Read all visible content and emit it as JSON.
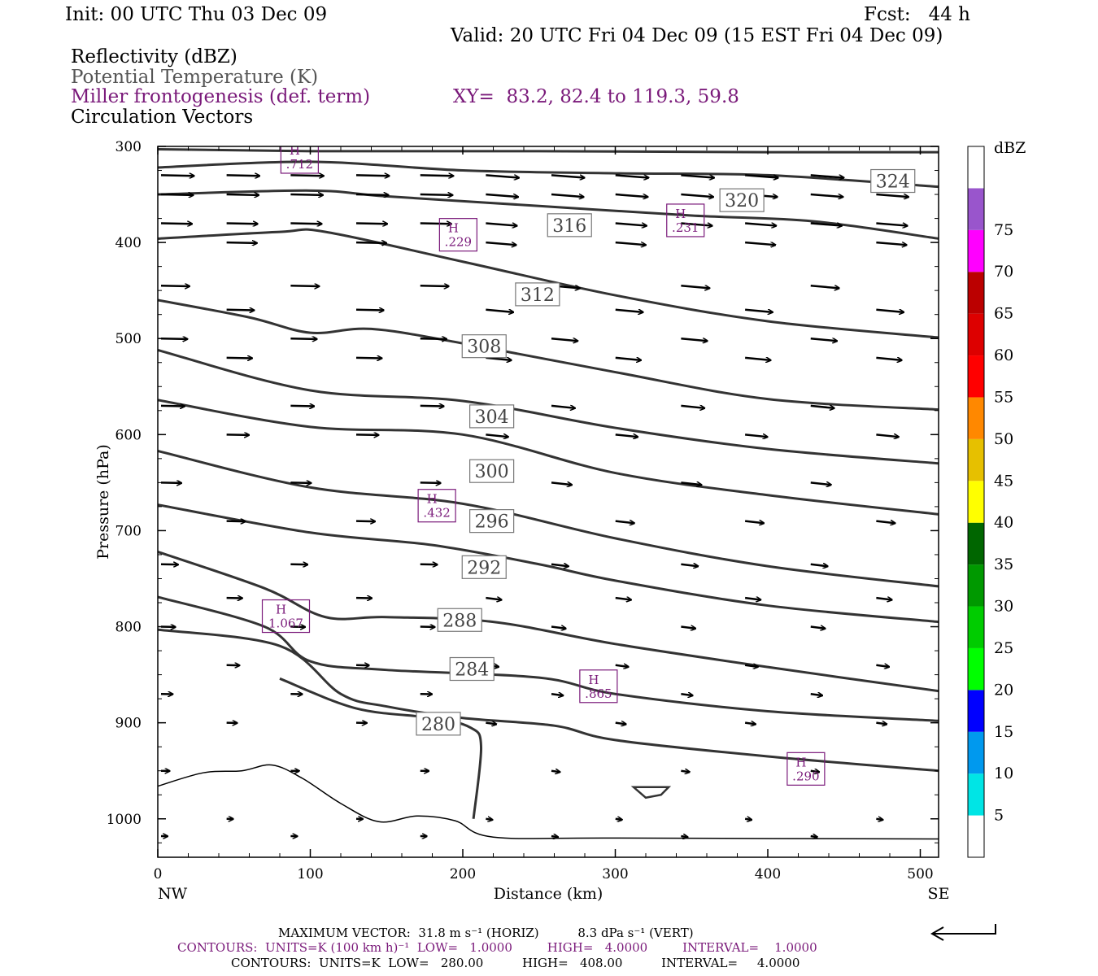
{
  "header": {
    "init": "Init: 00 UTC Thu 03 Dec 09",
    "fcst": "Fcst:   44 h",
    "valid": "Valid: 20 UTC Fri 04 Dec 09 (15 EST Fri 04 Dec 09)",
    "field1": "Reflectivity (dBZ)",
    "field2": "Potential Temperature (K)",
    "field3": "Miller frontogenesis (def. term)",
    "xy": "XY=  83.2, 82.4 to 119.3, 59.8",
    "field4": "Circulation Vectors"
  },
  "chart_data": {
    "type": "cross-section",
    "xlabel": "Distance (km)",
    "ylabel": "Pressure (hPa)",
    "xlim": [
      0,
      512
    ],
    "ylim": [
      1040,
      300
    ],
    "x_ticks": [
      0,
      100,
      200,
      300,
      400,
      500
    ],
    "y_ticks": [
      300,
      400,
      500,
      600,
      700,
      800,
      900,
      1000
    ],
    "x_end_labels": {
      "left": "NW",
      "right": "SE"
    },
    "theta_contours": [
      {
        "label": "324",
        "label_at": [
          482,
          336
        ],
        "points": [
          [
            0,
            303
          ],
          [
            100,
            305
          ],
          [
            250,
            305
          ],
          [
            400,
            306
          ],
          [
            512,
            306
          ]
        ]
      },
      {
        "label": "324",
        "label_at": null,
        "points": [
          [
            0,
            322
          ],
          [
            100,
            316
          ],
          [
            200,
            325
          ],
          [
            300,
            328
          ],
          [
            400,
            330
          ],
          [
            512,
            342
          ]
        ]
      },
      {
        "label": "320",
        "label_at": [
          383,
          356
        ],
        "points": [
          [
            0,
            350
          ],
          [
            100,
            346
          ],
          [
            150,
            352
          ],
          [
            250,
            362
          ],
          [
            350,
            372
          ],
          [
            430,
            378
          ],
          [
            512,
            396
          ]
        ]
      },
      {
        "label": "316",
        "label_at": [
          270,
          382
        ],
        "points": [
          [
            0,
            396
          ],
          [
            80,
            389
          ],
          [
            110,
            389
          ],
          [
            200,
            420
          ],
          [
            300,
            455
          ],
          [
            400,
            482
          ],
          [
            512,
            499
          ]
        ]
      },
      {
        "label": "312",
        "label_at": [
          249,
          454
        ],
        "points": [
          [
            0,
            460
          ],
          [
            60,
            478
          ],
          [
            100,
            494
          ],
          [
            140,
            490
          ],
          [
            200,
            505
          ],
          [
            300,
            535
          ],
          [
            400,
            563
          ],
          [
            512,
            574
          ]
        ]
      },
      {
        "label": "308",
        "label_at": [
          214,
          508
        ],
        "points": [
          [
            0,
            512
          ],
          [
            100,
            554
          ],
          [
            200,
            565
          ],
          [
            300,
            593
          ],
          [
            400,
            615
          ],
          [
            512,
            630
          ]
        ]
      },
      {
        "label": "304",
        "label_at": [
          219,
          581
        ],
        "points": [
          [
            0,
            564
          ],
          [
            100,
            592
          ],
          [
            200,
            600
          ],
          [
            300,
            640
          ],
          [
            400,
            663
          ],
          [
            512,
            683
          ]
        ]
      },
      {
        "label": "300",
        "label_at": [
          219,
          638
        ],
        "points": [
          [
            0,
            617
          ],
          [
            100,
            655
          ],
          [
            200,
            672
          ],
          [
            300,
            708
          ],
          [
            400,
            737
          ],
          [
            512,
            758
          ]
        ]
      },
      {
        "label": "296",
        "label_at": [
          219,
          690
        ],
        "points": [
          [
            0,
            673
          ],
          [
            100,
            702
          ],
          [
            180,
            715
          ],
          [
            250,
            735
          ],
          [
            300,
            752
          ],
          [
            400,
            778
          ],
          [
            512,
            795
          ]
        ]
      },
      {
        "label": "292",
        "label_at": [
          214,
          738
        ],
        "points": [
          [
            0,
            722
          ],
          [
            70,
            760
          ],
          [
            110,
            790
          ],
          [
            150,
            790
          ],
          [
            220,
            795
          ],
          [
            300,
            818
          ],
          [
            400,
            842
          ],
          [
            512,
            867
          ]
        ]
      },
      {
        "label": "288",
        "label_at": [
          198,
          793
        ],
        "points": [
          [
            0,
            769
          ],
          [
            70,
            800
          ],
          [
            100,
            836
          ],
          [
            150,
            845
          ],
          [
            250,
            853
          ],
          [
            300,
            870
          ],
          [
            400,
            888
          ],
          [
            512,
            898
          ]
        ]
      },
      {
        "label": "284",
        "label_at": [
          206,
          844
        ],
        "points": [
          [
            0,
            803
          ],
          [
            80,
            820
          ],
          [
            120,
            870
          ],
          [
            150,
            883
          ],
          [
            200,
            895
          ],
          [
            260,
            903
          ],
          [
            300,
            918
          ],
          [
            400,
            935
          ],
          [
            512,
            950
          ]
        ]
      },
      {
        "label": "280",
        "label_at": [
          184,
          901
        ],
        "points": [
          [
            80,
            854
          ],
          [
            130,
            885
          ],
          [
            180,
            895
          ],
          [
            205,
            905
          ],
          [
            212,
            925
          ],
          [
            207,
            1000
          ]
        ]
      }
    ],
    "frontogenesis_maxima": [
      {
        "label": "H",
        "value": ".712",
        "at": [
          93,
          311
        ]
      },
      {
        "label": "H",
        "value": ".229",
        "at": [
          197,
          392
        ]
      },
      {
        "label": "H",
        "value": ".231",
        "at": [
          346,
          377
        ]
      },
      {
        "label": "H",
        "value": ".432",
        "at": [
          183,
          674
        ]
      },
      {
        "label": "H",
        "value": "1.067",
        "at": [
          84,
          789
        ]
      },
      {
        "label": "H",
        "value": ".865",
        "at": [
          289,
          862
        ]
      },
      {
        "label": "H",
        "value": ".290",
        "at": [
          425,
          948
        ]
      }
    ],
    "colorbar": {
      "label": "dBZ",
      "levels": [
        "5",
        "10",
        "15",
        "20",
        "25",
        "30",
        "35",
        "40",
        "45",
        "50",
        "55",
        "60",
        "65",
        "70",
        "75"
      ],
      "colors": [
        "#ffffff",
        "#00e5e5",
        "#0099ee",
        "#0000ff",
        "#00ff00",
        "#00cc00",
        "#009900",
        "#006600",
        "#ffff00",
        "#e6c000",
        "#ff8800",
        "#ff0000",
        "#dd0000",
        "#bb0000",
        "#ff00ff",
        "#9955cc",
        "#ffffff"
      ]
    }
  },
  "footer": {
    "line1": "MAXIMUM VECTOR:  31.8 m s⁻¹ (HORIZ)          8.3 dPa s⁻¹ (VERT)",
    "line2": "CONTOURS:  UNITS=K (100 km h)⁻¹  LOW=   1.0000         HIGH=   4.0000         INTERVAL=    1.0000",
    "line3": "CONTOURS:  UNITS=K  LOW=   280.00          HIGH=   408.00          INTERVAL=     4.0000"
  },
  "colors": {
    "contour": "#333333",
    "purple": "#7a1a7a",
    "axis": "#000000"
  }
}
